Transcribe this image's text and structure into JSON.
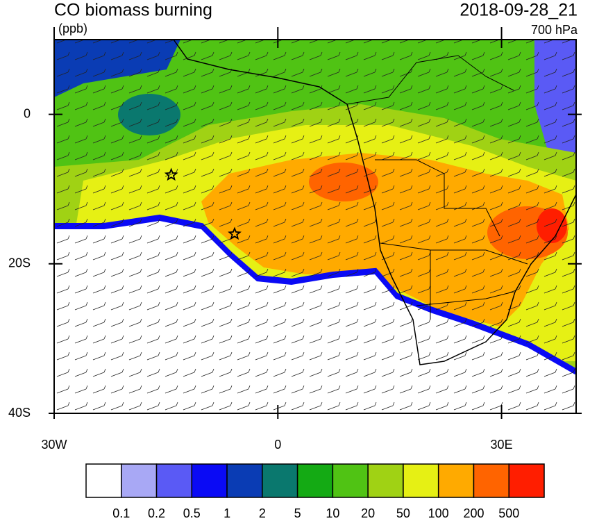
{
  "title": "CO biomass burning",
  "units": "(ppb)",
  "time": "2018-09-28_21",
  "level": "700 hPa",
  "map": {
    "xlim": [
      -30,
      40
    ],
    "ylim": [
      -40,
      10
    ],
    "xticks": [
      {
        "value": -30,
        "label": "30W"
      },
      0,
      {
        "value": 30,
        "label": "30E"
      }
    ],
    "yticks": [
      0,
      {
        "value": -20,
        "label": "20S"
      },
      {
        "value": -40,
        "label": "40S"
      }
    ],
    "markers": [
      {
        "lon": -14.3,
        "lat": -8.1
      },
      {
        "lon": -5.8,
        "lat": -16
      }
    ]
  },
  "colorbar": {
    "levels": [
      0.1,
      0.2,
      0.5,
      1,
      2,
      5,
      10,
      20,
      50,
      100,
      200,
      500
    ],
    "colors": [
      "#ffffff",
      "#a8a8f5",
      "#5a5af5",
      "#0a0af5",
      "#0a3cb4",
      "#0a786e",
      "#14aa14",
      "#50c314",
      "#a0d214",
      "#e6f014",
      "#ffaa00",
      "#ff6400",
      "#ff1e00"
    ]
  }
}
